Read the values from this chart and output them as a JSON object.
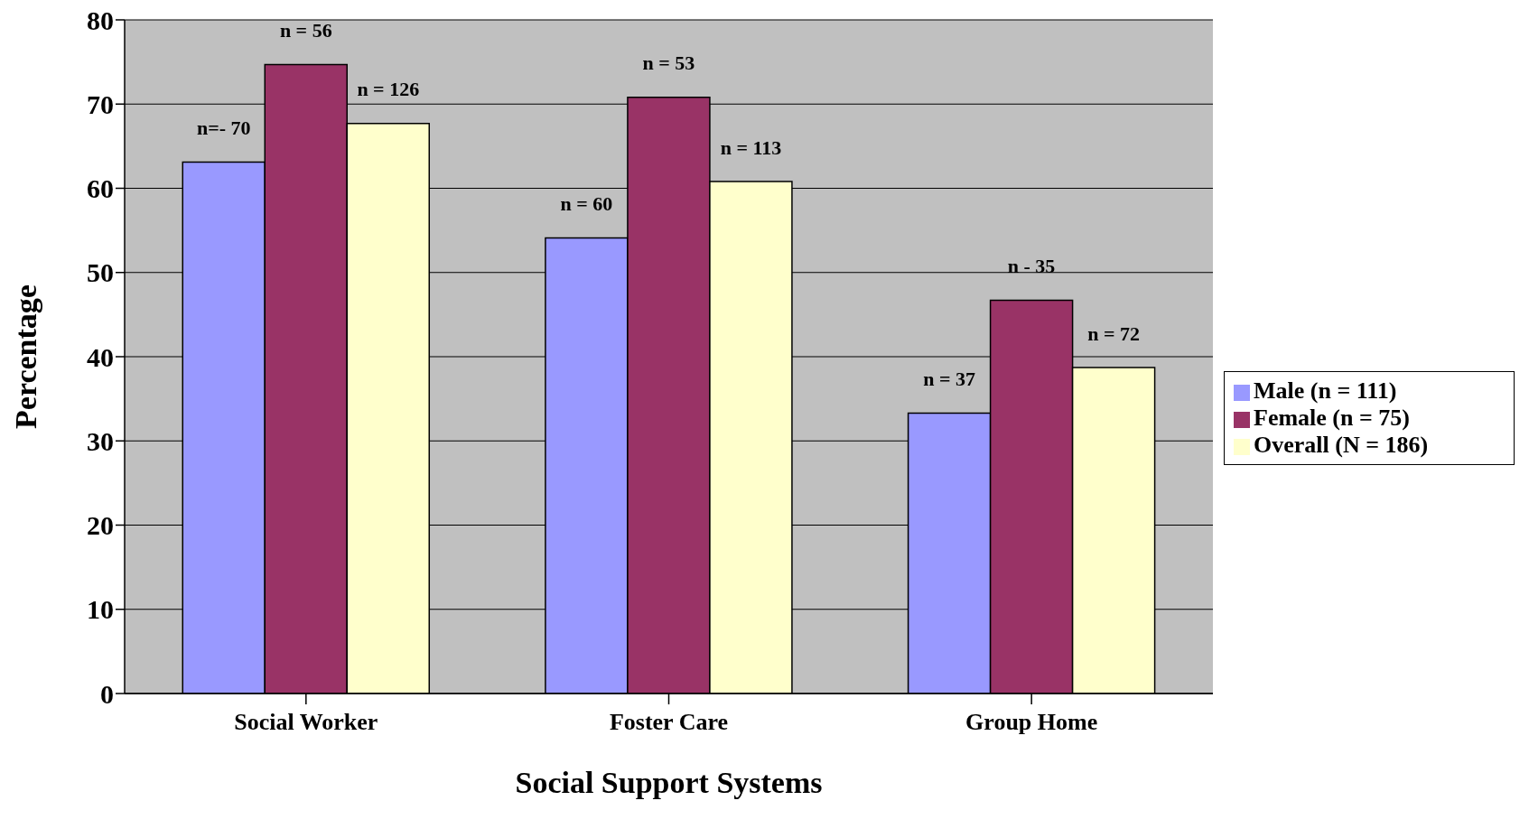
{
  "chart_data": {
    "type": "bar",
    "xlabel": "Social Support Systems",
    "ylabel": "Percentage",
    "categories": [
      "Social Worker",
      "Foster Care",
      "Group Home"
    ],
    "series": [
      {
        "name": "Male (n = 111)",
        "color": "#9999ff",
        "values": [
          63.1,
          54.1,
          33.3
        ]
      },
      {
        "name": "Female (n = 75)",
        "color": "#993366",
        "values": [
          74.7,
          70.8,
          46.7
        ]
      },
      {
        "name": "Overall (N = 186)",
        "color": "#ffffcc",
        "values": [
          67.7,
          60.8,
          38.7
        ]
      }
    ],
    "annotations": [
      "n=- 70",
      "n = 56",
      "n = 126",
      "n = 60",
      "n = 53",
      "n = 113",
      "n = 37",
      "n - 35",
      "n = 72"
    ],
    "ylim": [
      0,
      80
    ],
    "yticks": [
      0,
      10,
      20,
      30,
      40,
      50,
      60,
      70,
      80
    ],
    "grid": "y",
    "legend": "right"
  }
}
